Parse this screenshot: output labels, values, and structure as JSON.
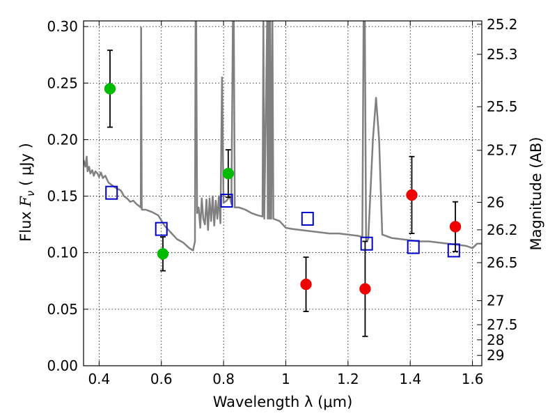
{
  "chart_data": {
    "type": "scatter",
    "xlabel": "Wavelength  λ (μm)",
    "ylabel_prefix": "Flux  ",
    "ylabel_symbol": "F",
    "ylabel_sub": "ν",
    "ylabel_unit": " ( μJy )",
    "y2label": "Magnitude (AB)",
    "xlim": [
      0.35,
      1.63
    ],
    "ylim": [
      0.0,
      0.305
    ],
    "grid": true,
    "x_ticks": [
      {
        "value": 0.4,
        "label": "0.4"
      },
      {
        "value": 0.6,
        "label": "0.6"
      },
      {
        "value": 0.8,
        "label": "0.8"
      },
      {
        "value": 1.0,
        "label": "1"
      },
      {
        "value": 1.2,
        "label": "1.2"
      },
      {
        "value": 1.4,
        "label": "1.4"
      },
      {
        "value": 1.6,
        "label": "1.6"
      }
    ],
    "y_ticks": [
      {
        "value": 0.0,
        "label": "0.00"
      },
      {
        "value": 0.05,
        "label": "0.05"
      },
      {
        "value": 0.1,
        "label": "0.10"
      },
      {
        "value": 0.15,
        "label": "0.15"
      },
      {
        "value": 0.2,
        "label": "0.20"
      },
      {
        "value": 0.25,
        "label": "0.25"
      },
      {
        "value": 0.3,
        "label": "0.30"
      }
    ],
    "mag_ticks": [
      {
        "value": 25.2,
        "label": "25.2"
      },
      {
        "value": 25.3,
        "label": "25.3"
      },
      {
        "value": 25.5,
        "label": "25.5"
      },
      {
        "value": 25.7,
        "label": "25.7"
      },
      {
        "value": 26.0,
        "label": "26"
      },
      {
        "value": 26.2,
        "label": "26.2"
      },
      {
        "value": 26.5,
        "label": "26.5"
      },
      {
        "value": 27.0,
        "label": "27"
      },
      {
        "value": 27.5,
        "label": "27.5"
      },
      {
        "value": 28.0,
        "label": "28"
      },
      {
        "value": 29.0,
        "label": "29"
      }
    ],
    "series": [
      {
        "kind": "spectrum",
        "color": "#808080",
        "points": [
          [
            0.35,
            0.182
          ],
          [
            0.356,
            0.176
          ],
          [
            0.36,
            0.185
          ],
          [
            0.363,
            0.172
          ],
          [
            0.368,
            0.176
          ],
          [
            0.372,
            0.17
          ],
          [
            0.378,
            0.173
          ],
          [
            0.383,
            0.168
          ],
          [
            0.388,
            0.172
          ],
          [
            0.395,
            0.17
          ],
          [
            0.4,
            0.167
          ],
          [
            0.406,
            0.171
          ],
          [
            0.412,
            0.166
          ],
          [
            0.42,
            0.168
          ],
          [
            0.43,
            0.162
          ],
          [
            0.44,
            0.16
          ],
          [
            0.455,
            0.157
          ],
          [
            0.47,
            0.155
          ],
          [
            0.48,
            0.15
          ],
          [
            0.49,
            0.148
          ],
          [
            0.5,
            0.145
          ],
          [
            0.51,
            0.146
          ],
          [
            0.52,
            0.143
          ],
          [
            0.53,
            0.141
          ],
          [
            0.534,
            0.14
          ],
          [
            0.535,
            0.299
          ],
          [
            0.537,
            0.138
          ],
          [
            0.55,
            0.138
          ],
          [
            0.57,
            0.136
          ],
          [
            0.59,
            0.133
          ],
          [
            0.61,
            0.124
          ],
          [
            0.63,
            0.118
          ],
          [
            0.65,
            0.112
          ],
          [
            0.67,
            0.109
          ],
          [
            0.69,
            0.104
          ],
          [
            0.702,
            0.102
          ],
          [
            0.708,
            0.11
          ],
          [
            0.71,
            0.305
          ],
          [
            0.712,
            0.305
          ],
          [
            0.715,
            0.135
          ],
          [
            0.72,
            0.14
          ],
          [
            0.725,
            0.122
          ],
          [
            0.73,
            0.148
          ],
          [
            0.735,
            0.13
          ],
          [
            0.74,
            0.125
          ],
          [
            0.745,
            0.147
          ],
          [
            0.75,
            0.12
          ],
          [
            0.755,
            0.148
          ],
          [
            0.76,
            0.128
          ],
          [
            0.765,
            0.15
          ],
          [
            0.77,
            0.124
          ],
          [
            0.775,
            0.146
          ],
          [
            0.78,
            0.13
          ],
          [
            0.785,
            0.15
          ],
          [
            0.79,
            0.126
          ],
          [
            0.795,
            0.255
          ],
          [
            0.8,
            0.144
          ],
          [
            0.81,
            0.146
          ],
          [
            0.82,
            0.15
          ],
          [
            0.825,
            0.143
          ],
          [
            0.83,
            0.305
          ],
          [
            0.833,
            0.305
          ],
          [
            0.836,
            0.14
          ],
          [
            0.85,
            0.14
          ],
          [
            0.87,
            0.138
          ],
          [
            0.89,
            0.135
          ],
          [
            0.91,
            0.133
          ],
          [
            0.925,
            0.132
          ],
          [
            0.928,
            0.305
          ],
          [
            0.931,
            0.13
          ],
          [
            0.94,
            0.305
          ],
          [
            0.942,
            0.13
          ],
          [
            0.945,
            0.305
          ],
          [
            0.948,
            0.13
          ],
          [
            0.95,
            0.305
          ],
          [
            0.953,
            0.13
          ],
          [
            0.957,
            0.305
          ],
          [
            0.96,
            0.13
          ],
          [
            0.98,
            0.128
          ],
          [
            1.0,
            0.122
          ],
          [
            1.02,
            0.121
          ],
          [
            1.05,
            0.12
          ],
          [
            1.08,
            0.119
          ],
          [
            1.11,
            0.118
          ],
          [
            1.14,
            0.117
          ],
          [
            1.17,
            0.117
          ],
          [
            1.2,
            0.116
          ],
          [
            1.23,
            0.115
          ],
          [
            1.246,
            0.114
          ],
          [
            1.25,
            0.305
          ],
          [
            1.254,
            0.305
          ],
          [
            1.258,
            0.11
          ],
          [
            1.265,
            0.112
          ],
          [
            1.28,
            0.2
          ],
          [
            1.29,
            0.237
          ],
          [
            1.3,
            0.2
          ],
          [
            1.31,
            0.116
          ],
          [
            1.34,
            0.113
          ],
          [
            1.37,
            0.112
          ],
          [
            1.4,
            0.111
          ],
          [
            1.43,
            0.11
          ],
          [
            1.46,
            0.11
          ],
          [
            1.49,
            0.109
          ],
          [
            1.52,
            0.108
          ],
          [
            1.55,
            0.107
          ],
          [
            1.58,
            0.106
          ],
          [
            1.6,
            0.104
          ],
          [
            1.615,
            0.108
          ],
          [
            1.63,
            0.108
          ]
        ]
      },
      {
        "kind": "model",
        "marker": "open-square",
        "color": "#0000cc",
        "x": [
          0.44,
          0.6,
          0.81,
          1.07,
          1.26,
          1.41,
          1.54
        ],
        "y": [
          0.153,
          0.121,
          0.146,
          0.13,
          0.108,
          0.105,
          0.102
        ]
      },
      {
        "kind": "observed",
        "marker": "filled-circle",
        "color": "#00bb00",
        "x": [
          0.435,
          0.605,
          0.815
        ],
        "y": [
          0.245,
          0.099,
          0.17
        ],
        "err": [
          0.034,
          0.015,
          0.021
        ]
      },
      {
        "kind": "observed",
        "marker": "filled-circle",
        "color": "#ee0000",
        "x": [
          1.065,
          1.255,
          1.405,
          1.545
        ],
        "y": [
          0.072,
          0.068,
          0.151,
          0.123
        ],
        "err": [
          0.024,
          0.042,
          0.034,
          0.022
        ]
      }
    ]
  }
}
